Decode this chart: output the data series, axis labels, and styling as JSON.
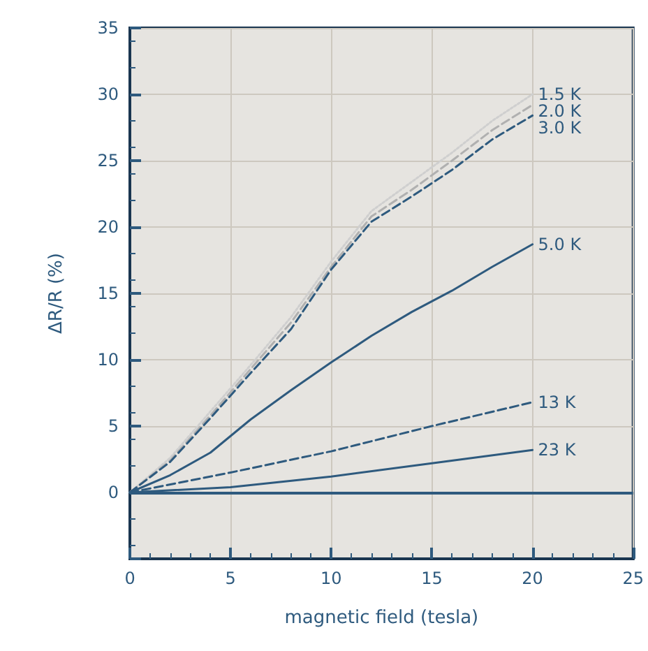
{
  "chart_data": {
    "type": "line",
    "xlabel": "magnetic field (tesla)",
    "ylabel": "ΔR/R (%)",
    "xlim": [
      0,
      25
    ],
    "xticks": [
      0,
      5,
      10,
      15,
      20,
      25
    ],
    "ylim": [
      -5,
      35
    ],
    "yticks": [
      {
        "value": -5,
        "label": null
      },
      0,
      5,
      10,
      15,
      20,
      25,
      30,
      35
    ],
    "grid": true,
    "marker": "none",
    "ref_lines": [
      {
        "axis": "y",
        "value": 0,
        "color": "#2e5a7e"
      }
    ],
    "series": [
      {
        "name": "1.5 K",
        "color": "#cfcfcf",
        "line_style": "dotted",
        "x": [
          0,
          2,
          4,
          6,
          8,
          10,
          12,
          14,
          16,
          18,
          20
        ],
        "values": [
          0,
          2.6,
          6.1,
          9.6,
          13.2,
          17.4,
          21.2,
          23.4,
          25.6,
          28,
          30
        ]
      },
      {
        "name": "2.0 K",
        "color": "#b0b0b0",
        "line_style": "dashed",
        "x": [
          0,
          2,
          4,
          6,
          8,
          10,
          12,
          14,
          16,
          18,
          20
        ],
        "values": [
          0,
          2.4,
          5.8,
          9.3,
          12.8,
          17,
          20.8,
          22.8,
          25,
          27.3,
          29.2
        ]
      },
      {
        "name": "3.0 K",
        "color": "#2e5a7e",
        "line_style": "dashed",
        "x": [
          0,
          2,
          4,
          6,
          8,
          10,
          12,
          14,
          16,
          18,
          20
        ],
        "values": [
          0,
          2.3,
          5.6,
          9,
          12.3,
          16.8,
          20.4,
          22.3,
          24.3,
          26.6,
          28.4
        ]
      },
      {
        "name": "5.0 K",
        "color": "#2e5a7e",
        "line_style": "solid",
        "x": [
          0,
          2,
          4,
          6,
          8,
          10,
          12,
          14,
          16,
          18,
          20
        ],
        "values": [
          0,
          1.3,
          3,
          5.5,
          7.7,
          9.8,
          11.8,
          13.6,
          15.2,
          17,
          18.7
        ]
      },
      {
        "name": "13 K",
        "color": "#2e5a7e",
        "line_style": "dashed",
        "x": [
          0,
          5,
          10,
          15,
          20
        ],
        "values": [
          0,
          1.5,
          3.1,
          5,
          6.8
        ]
      },
      {
        "name": "23 K",
        "color": "#2e5a7e",
        "line_style": "solid",
        "x": [
          0,
          5,
          10,
          15,
          20
        ],
        "values": [
          0,
          0.4,
          1.2,
          2.2,
          3.2
        ]
      }
    ]
  }
}
